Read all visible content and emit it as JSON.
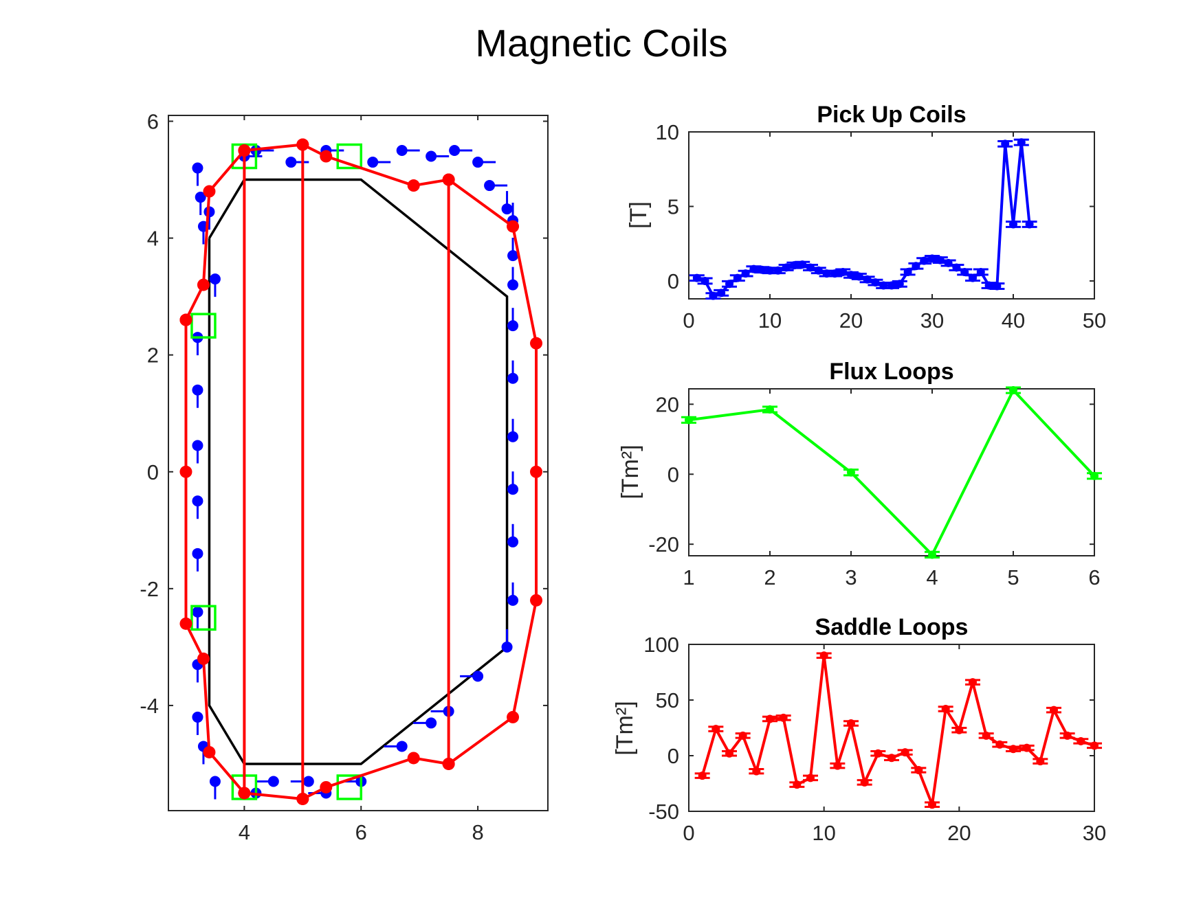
{
  "figure": {
    "suptitle": "Magnetic Coils"
  },
  "colors": {
    "pickup": "#0000ff",
    "flux": "#00ff00",
    "saddle": "#ff0000",
    "vessel": "#000000"
  },
  "chart_data": [
    {
      "type": "line",
      "id": "geometry",
      "title": "",
      "xlabel": "",
      "ylabel": "",
      "xlim": [
        2.7,
        9.2
      ],
      "ylim": [
        -5.8,
        6.1
      ],
      "xticks": [
        "4",
        "6",
        "8"
      ],
      "yticks": [
        "6",
        "4",
        "2",
        "0",
        "-2",
        "-4"
      ],
      "vessel": {
        "x": [
          3.4,
          3.4,
          4.0,
          6.0,
          8.5,
          8.5,
          6.0,
          4.0,
          3.4
        ],
        "y": [
          4.0,
          -4.0,
          -5.0,
          -5.0,
          -3.0,
          3.0,
          5.0,
          5.0,
          4.0
        ]
      },
      "pickup_coils": {
        "x": [
          3.2,
          3.25,
          3.3,
          3.4,
          3.5,
          3.2,
          3.2,
          3.2,
          3.2,
          3.2,
          3.2,
          3.2,
          3.2,
          3.3,
          3.5,
          4.2,
          4.5,
          5.1,
          5.4,
          6.0,
          6.7,
          7.2,
          7.5,
          8.0,
          8.5,
          8.6,
          8.6,
          8.6,
          8.6,
          8.6,
          8.6,
          8.6,
          8.6,
          8.6,
          8.5,
          8.2,
          8.0,
          7.6,
          7.2,
          6.7,
          6.2,
          5.4,
          4.8,
          4.2,
          4.0
        ],
        "y": [
          5.2,
          4.7,
          4.2,
          4.45,
          3.3,
          2.3,
          1.4,
          0.45,
          -0.5,
          -1.4,
          -2.4,
          -3.3,
          -4.2,
          -4.7,
          -5.3,
          -5.5,
          -5.3,
          -5.3,
          -5.5,
          -5.3,
          -4.7,
          -4.3,
          -4.1,
          -3.5,
          -3.0,
          -2.2,
          -1.2,
          -0.3,
          0.6,
          1.6,
          2.5,
          3.2,
          3.7,
          4.3,
          4.5,
          4.9,
          5.3,
          5.5,
          5.4,
          5.5,
          5.3,
          5.5,
          5.3,
          5.5,
          5.4
        ]
      },
      "flux_loops": {
        "x": [
          4.0,
          5.8,
          3.3,
          3.3,
          4.0,
          5.8
        ],
        "y": [
          5.4,
          5.4,
          2.5,
          -2.5,
          -5.4,
          -5.4
        ]
      },
      "saddle_loops": {
        "x": [
          3.0,
          3.0,
          3.0,
          3.3,
          3.4,
          4.0,
          4.0,
          5.0,
          5.0,
          5.4,
          6.9,
          7.5,
          7.5,
          8.6,
          9.0,
          9.0,
          9.0,
          8.6,
          7.5,
          7.5,
          6.9,
          5.4,
          5.0,
          5.0,
          4.0,
          4.0,
          3.4,
          3.3,
          3.0,
          3.0
        ],
        "y": [
          2.6,
          0.0,
          -2.6,
          -3.2,
          -4.8,
          -5.5,
          5.5,
          5.6,
          -5.6,
          -5.4,
          -4.9,
          -5.0,
          5.0,
          4.2,
          2.2,
          0.0,
          -2.2,
          -4.2,
          -5.0,
          5.0,
          4.9,
          5.4,
          5.6,
          -5.6,
          -5.5,
          5.5,
          4.8,
          3.2,
          2.6,
          2.6
        ]
      }
    },
    {
      "type": "line",
      "id": "pickup",
      "title": "Pick Up Coils",
      "xlabel": "",
      "ylabel": "[T]",
      "xlim": [
        0,
        50
      ],
      "ylim": [
        -1.2,
        10.0
      ],
      "xticks": [
        "0",
        "10",
        "20",
        "30",
        "40",
        "50"
      ],
      "yticks": [
        "10",
        "5",
        "0"
      ],
      "x": [
        1,
        2,
        3,
        4,
        5,
        6,
        7,
        8,
        9,
        10,
        11,
        12,
        13,
        14,
        15,
        16,
        17,
        18,
        19,
        20,
        21,
        22,
        23,
        24,
        25,
        26,
        27,
        28,
        29,
        30,
        31,
        32,
        33,
        34,
        35,
        36,
        37,
        38,
        39,
        40,
        41,
        42
      ],
      "values": [
        0.2,
        0.0,
        -1.0,
        -0.8,
        -0.2,
        0.2,
        0.5,
        0.8,
        0.75,
        0.7,
        0.7,
        0.9,
        1.05,
        1.1,
        0.9,
        0.7,
        0.5,
        0.5,
        0.6,
        0.4,
        0.3,
        0.1,
        -0.1,
        -0.3,
        -0.3,
        -0.2,
        0.6,
        1.0,
        1.35,
        1.5,
        1.4,
        1.2,
        0.9,
        0.6,
        0.2,
        0.6,
        -0.3,
        -0.35,
        9.2,
        3.8,
        9.3,
        3.8
      ],
      "error": 0.18
    },
    {
      "type": "line",
      "id": "flux",
      "title": "Flux Loops",
      "xlabel": "",
      "ylabel": "[Tm²]",
      "xlim": [
        1,
        6
      ],
      "ylim": [
        -23.3,
        24.4
      ],
      "xticks": [
        "1",
        "2",
        "3",
        "4",
        "5",
        "6"
      ],
      "yticks": [
        "20",
        "0",
        "-20"
      ],
      "x": [
        1,
        2,
        3,
        4,
        5,
        6
      ],
      "values": [
        15.5,
        18.5,
        0.5,
        -23.0,
        24.0,
        -0.5
      ],
      "error": 0.8
    },
    {
      "type": "line",
      "id": "saddle",
      "title": "Saddle Loops",
      "xlabel": "",
      "ylabel": "[Tm²]",
      "xlim": [
        0,
        30
      ],
      "ylim": [
        -50,
        100
      ],
      "xticks": [
        "0",
        "10",
        "20",
        "30"
      ],
      "yticks": [
        "100",
        "50",
        "0",
        "-50"
      ],
      "x": [
        1,
        2,
        3,
        4,
        5,
        6,
        7,
        8,
        9,
        10,
        11,
        12,
        13,
        14,
        15,
        16,
        17,
        18,
        19,
        20,
        21,
        22,
        23,
        24,
        25,
        26,
        27,
        28,
        29,
        30
      ],
      "values": [
        -18,
        24,
        2,
        18,
        -14,
        33,
        34,
        -26,
        -20,
        90,
        -9,
        29,
        -24,
        2,
        -2,
        3,
        -13,
        -44,
        42,
        23,
        66,
        18,
        10,
        6,
        7,
        -5,
        41,
        18,
        13,
        9
      ],
      "error": 2
    }
  ]
}
